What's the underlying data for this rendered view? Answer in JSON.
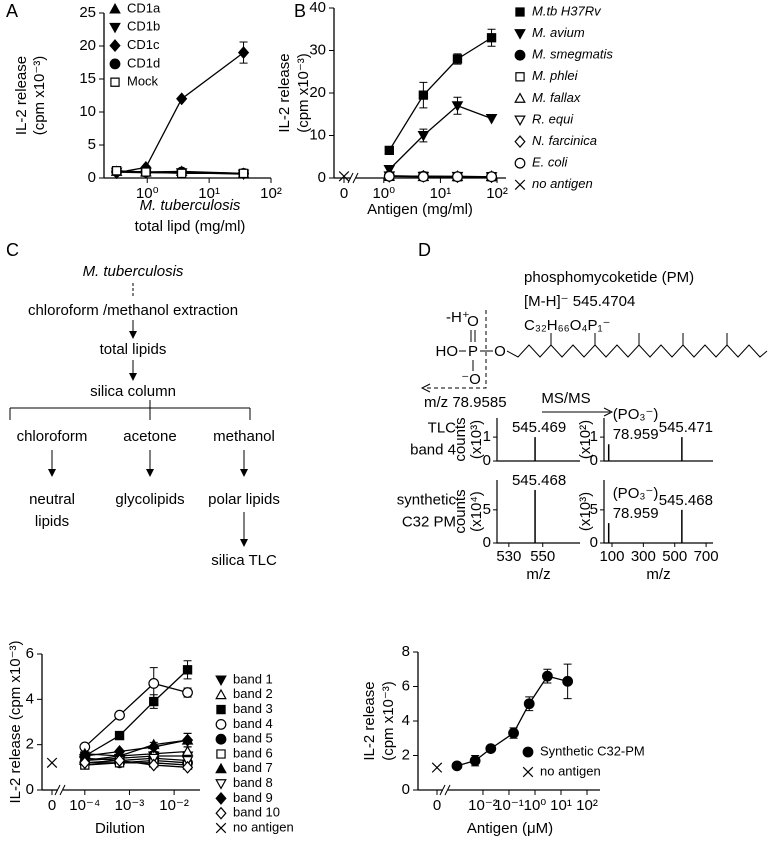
{
  "panel_labels": [
    "A",
    "B",
    "C",
    "D"
  ],
  "chart_data": [
    {
      "type": "line",
      "color": "#000000",
      "ylabel": [
        "IL-2 release",
        "(cpm x10⁻³)"
      ],
      "xlabel": [
        "M. tuberculosis",
        "total lipd (mg/ml)"
      ],
      "xscale": "log",
      "xlim": [
        0.2,
        100
      ],
      "xticks": [
        {
          "value": 1,
          "label": "10⁰"
        },
        {
          "value": 10,
          "label": "10¹"
        },
        {
          "value": 100,
          "label": "10²"
        }
      ],
      "ylim": [
        0,
        25
      ],
      "yticks": [
        0,
        5,
        10,
        15,
        20,
        25
      ],
      "legend": "upper left",
      "x": [
        0.32,
        0.95,
        3.6,
        36
      ],
      "series": [
        {
          "name": "CD1a",
          "marker": "triangle",
          "filled": true,
          "values": [
            1.0,
            0.9,
            1.0,
            0.7
          ]
        },
        {
          "name": "CD1b",
          "marker": "triangle-down",
          "filled": true,
          "values": [
            0.9,
            0.8,
            0.8,
            0.6
          ]
        },
        {
          "name": "CD1c",
          "marker": "diamond",
          "filled": true,
          "values": [
            0.8,
            1.6,
            12,
            19
          ],
          "errors": [
            null,
            null,
            null,
            1.6
          ]
        },
        {
          "name": "CD1d",
          "marker": "circle",
          "filled": true,
          "values": [
            1.0,
            0.9,
            0.9,
            0.7
          ]
        },
        {
          "name": "Mock",
          "marker": "square",
          "filled": false,
          "values": [
            1.1,
            0.9,
            0.7,
            0.7
          ]
        }
      ]
    },
    {
      "type": "line",
      "color": "#000000",
      "ylabel": [
        "IL-2 release",
        "(cpm x10⁻³)"
      ],
      "xlabel": [
        "Antigen (mg/ml)"
      ],
      "xscale": "log",
      "axis_break": true,
      "xlim": [
        0.35,
        144
      ],
      "xticks": [
        0,
        {
          "value": 1,
          "label": "10⁰"
        },
        {
          "value": 10,
          "label": "10¹"
        },
        {
          "value": 100,
          "label": "10²"
        }
      ],
      "ylim": [
        0,
        40
      ],
      "yticks": [
        0,
        10,
        20,
        30,
        40
      ],
      "legend": "right",
      "x": [
        1.25,
        5,
        20,
        80
      ],
      "series": [
        {
          "name": "M.tb H37Rv",
          "marker": "square",
          "filled": true,
          "values": [
            6.5,
            19.5,
            28,
            33
          ],
          "errors": [
            null,
            3,
            1.2,
            2
          ]
        },
        {
          "name": "M. avium",
          "marker": "triangle-down",
          "filled": true,
          "values": [
            2,
            10,
            17,
            14
          ],
          "errors": [
            null,
            1.5,
            2,
            null
          ]
        },
        {
          "name": "M. smegmatis",
          "marker": "circle",
          "filled": true,
          "values": [
            0.5,
            0.4,
            0.3,
            0.3
          ]
        },
        {
          "name": "M. phlei",
          "marker": "square",
          "filled": false,
          "values": [
            0.4,
            0.4,
            0.3,
            0.3
          ]
        },
        {
          "name": "M. fallax",
          "marker": "triangle",
          "filled": false,
          "values": [
            0.4,
            0.3,
            0.3,
            0.3
          ]
        },
        {
          "name": "R. equi",
          "marker": "triangle-down",
          "filled": false,
          "values": [
            0.5,
            0.4,
            0.4,
            0.3
          ]
        },
        {
          "name": "N. farcinica",
          "marker": "diamond",
          "filled": false,
          "values": [
            0.4,
            0.4,
            0.3,
            0.3
          ]
        },
        {
          "name": "E. coli",
          "marker": "circle",
          "filled": false,
          "values": [
            0.4,
            0.3,
            0.3,
            0.3
          ]
        },
        {
          "name": "no antigen",
          "marker": "cross",
          "filled": false,
          "x": [
            0
          ],
          "values": [
            0.4
          ]
        }
      ]
    },
    {
      "type": "line",
      "color": "#000000",
      "ylabel": [
        "IL-2 release (cpm x10⁻³)"
      ],
      "xlabel": [
        "Dilution"
      ],
      "xscale": "log",
      "axis_break": true,
      "xlim": [
        3.6e-05,
        0.038
      ],
      "xticks": [
        0,
        {
          "value": 0.0001,
          "label": "10⁻⁴"
        },
        {
          "value": 0.001,
          "label": "10⁻³"
        },
        {
          "value": 0.01,
          "label": "10⁻²"
        }
      ],
      "ylim": [
        0,
        6
      ],
      "yticks": [
        0,
        2,
        4,
        6
      ],
      "legend": "right",
      "x": [
        0.0001,
        0.0006,
        0.0035,
        0.02
      ],
      "series": [
        {
          "name": "band 1",
          "marker": "triangle-down",
          "filled": true,
          "values": [
            1.3,
            1.4,
            1.5,
            1.5
          ]
        },
        {
          "name": "band 2",
          "marker": "triangle",
          "filled": false,
          "values": [
            1.3,
            1.5,
            1.6,
            1.7
          ]
        },
        {
          "name": "band 3",
          "marker": "square",
          "filled": true,
          "values": [
            1.5,
            2.4,
            3.9,
            5.3
          ],
          "errors": [
            null,
            null,
            0.3,
            0.4
          ]
        },
        {
          "name": "band 4",
          "marker": "circle",
          "filled": false,
          "values": [
            1.9,
            3.3,
            4.7,
            4.3
          ],
          "errors": [
            null,
            null,
            0.7,
            0.2
          ]
        },
        {
          "name": "band 5",
          "marker": "circle",
          "filled": true,
          "values": [
            1.2,
            1.2,
            1.3,
            1.2
          ]
        },
        {
          "name": "band 6",
          "marker": "square",
          "filled": false,
          "values": [
            1.1,
            1.2,
            1.2,
            1.1
          ]
        },
        {
          "name": "band 7",
          "marker": "triangle",
          "filled": true,
          "values": [
            1.6,
            1.5,
            2.0,
            2.2
          ],
          "errors": [
            null,
            null,
            null,
            0.3
          ]
        },
        {
          "name": "band 8",
          "marker": "triangle-down",
          "filled": false,
          "values": [
            1.4,
            1.3,
            1.4,
            1.3
          ]
        },
        {
          "name": "band 9",
          "marker": "diamond",
          "filled": true,
          "values": [
            1.5,
            1.7,
            1.9,
            2.2
          ],
          "errors": [
            null,
            null,
            0.2,
            0.3
          ]
        },
        {
          "name": "band 10",
          "marker": "diamond",
          "filled": false,
          "values": [
            1.2,
            1.3,
            1.1,
            1.0
          ]
        },
        {
          "name": "no antigen",
          "marker": "cross",
          "filled": false,
          "x": [
            0
          ],
          "values": [
            1.2
          ]
        }
      ]
    },
    {
      "type": "line",
      "color": "#000000",
      "ylabel": [
        "IL-2 release",
        "(cpm x10⁻³)"
      ],
      "xlabel": [
        "Antigen (μM)"
      ],
      "xscale": "log",
      "axis_break": true,
      "xlim": [
        0.00054,
        316
      ],
      "xticks": [
        0,
        {
          "value": 0.01,
          "label": "10⁻²"
        },
        {
          "value": 0.1,
          "label": "10⁻¹"
        },
        {
          "value": 1,
          "label": "10⁰"
        },
        {
          "value": 10,
          "label": "10¹"
        },
        {
          "value": 100,
          "label": "10²"
        }
      ],
      "ylim": [
        0,
        8
      ],
      "yticks": [
        0,
        2,
        4,
        6,
        8
      ],
      "legend": "lower right",
      "x": [
        0.001,
        0.005,
        0.02,
        0.15,
        0.6,
        3,
        18
      ],
      "series": [
        {
          "name": "Synthetic C32-PM",
          "marker": "circle",
          "filled": true,
          "values": [
            1.4,
            1.7,
            2.4,
            3.3,
            5.0,
            6.6,
            6.3
          ],
          "errors": [
            null,
            0.3,
            null,
            0.3,
            0.4,
            0.4,
            1.0
          ]
        },
        {
          "name": "no antigen",
          "marker": "cross",
          "filled": false,
          "x": [
            0
          ],
          "values": [
            1.3
          ]
        }
      ]
    },
    {
      "type": "spectrum",
      "color": "#000000",
      "row_label": [
        "TLC",
        "band 4"
      ],
      "ylabel": "counts",
      "yunit": "(x10³)",
      "xlim": [
        523,
        572
      ],
      "ylim": [
        0,
        1.8
      ],
      "yticks": [
        0,
        1
      ],
      "x": [
        545.469
      ],
      "values": [
        1.0
      ]
    },
    {
      "type": "spectrum",
      "color": "#000000",
      "yunit": "(x10²)",
      "annotation": "(PO₃⁻)",
      "xlim": [
        49,
        744
      ],
      "ylim": [
        0,
        1.8
      ],
      "yticks": [
        0,
        1
      ],
      "x": [
        78.959,
        545.471
      ],
      "values": [
        0.7,
        1.0
      ]
    },
    {
      "type": "spectrum",
      "color": "#000000",
      "row_label": [
        "synthetic",
        "C32 PM"
      ],
      "ylabel": "counts",
      "yunit": "(x10⁴)",
      "xlabel": "m/z",
      "xlim": [
        523,
        572
      ],
      "ylim": [
        0,
        9.5
      ],
      "yticks": [
        0,
        5
      ],
      "xticks": [
        530,
        550
      ],
      "x": [
        545.468
      ],
      "values": [
        8
      ]
    },
    {
      "type": "spectrum",
      "color": "#000000",
      "yunit": "(x10³)",
      "annotation": "(PO₃⁻)",
      "xlabel": "m/z",
      "xlim": [
        49,
        744
      ],
      "ylim": [
        0,
        9.5
      ],
      "yticks": [
        0,
        5
      ],
      "xticks": [
        100,
        300,
        500,
        700
      ],
      "x": [
        78.959,
        545.468
      ],
      "values": [
        3,
        5
      ]
    }
  ],
  "flowchart": {
    "source": "M. tuberculosis",
    "extraction": "chloroform /methanol extraction",
    "total": "total lipids",
    "column": "silica column",
    "solvents": [
      "chloroform",
      "acetone",
      "methanol"
    ],
    "fractions": [
      [
        "neutral",
        "lipids"
      ],
      [
        "glycolipids"
      ],
      [
        "polar lipids"
      ]
    ],
    "tlc": "silica TLC"
  },
  "structure": {
    "title": "phosphomycoketide (PM)",
    "ion": "[M-H]⁻ 545.4704",
    "formula": "C₃₂H₆₆O₄P₁⁻",
    "deprotonation": "-H⁺",
    "atoms": {
      "top": "O",
      "center": "P",
      "bottom": "⁻O",
      "left": "HO",
      "right": "O"
    },
    "fragment": "m/z 78.9585",
    "msms": "MS/MS"
  }
}
